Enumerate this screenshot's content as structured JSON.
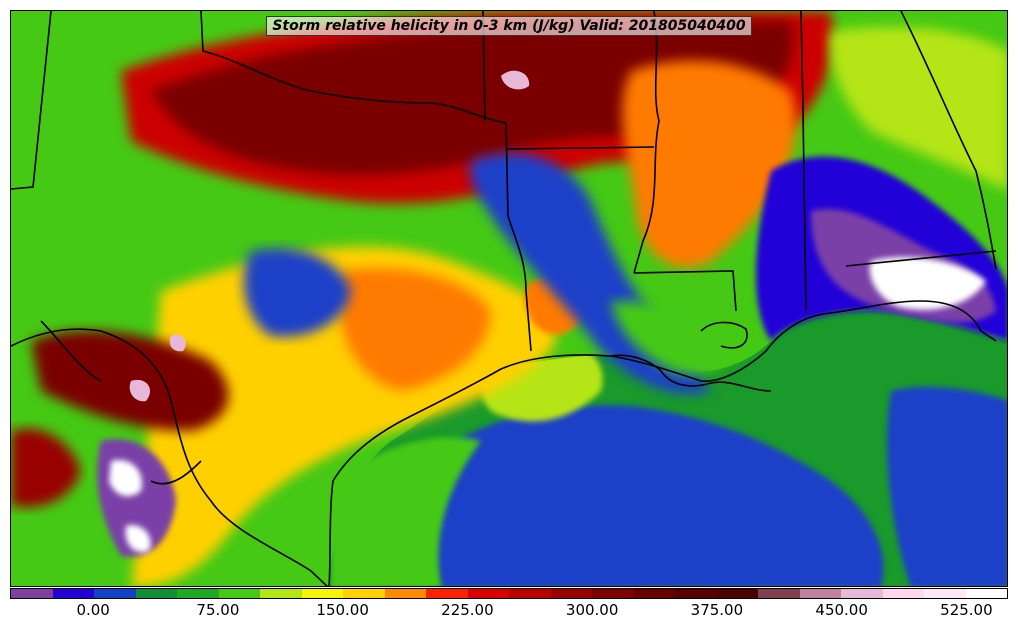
{
  "title": "Storm relative helicity in 0-3 km (J/kg) Valid: 201805040400",
  "colorbar": {
    "min": -50,
    "max": 550,
    "step": 25,
    "colors": [
      "#7f3f9f",
      "#2300d8",
      "#1142c6",
      "#118f34",
      "#1fa822",
      "#45c914",
      "#b5e512",
      "#f5f500",
      "#ffd200",
      "#ff8a00",
      "#ff2000",
      "#dd0000",
      "#bb0000",
      "#990000",
      "#7f0000",
      "#680000",
      "#570000",
      "#4d0000",
      "#804050",
      "#c080a0",
      "#e8b8d8",
      "#ffd8f0",
      "#ffe8f8",
      "#ffffff"
    ],
    "tick_values": [
      0,
      75,
      150,
      225,
      300,
      375,
      450,
      525
    ],
    "tick_labels": [
      "0.00",
      "75.00",
      "150.00",
      "225.00",
      "300.00",
      "375.00",
      "450.00",
      "525.00"
    ]
  },
  "field_colors": {
    "ocean": "#1a9a2a",
    "deep_blue": "#1a40c8",
    "violet": "#2000d8",
    "purple": "#7a3fa8",
    "dark_red": "#7a0000",
    "red": "#cc0000",
    "orange": "#ff7a00",
    "yellow": "#ffd000",
    "lime": "#b5e512",
    "green": "#45c914",
    "white": "#ffffff",
    "pink": "#e8b8d8"
  },
  "border_color": "#000000"
}
